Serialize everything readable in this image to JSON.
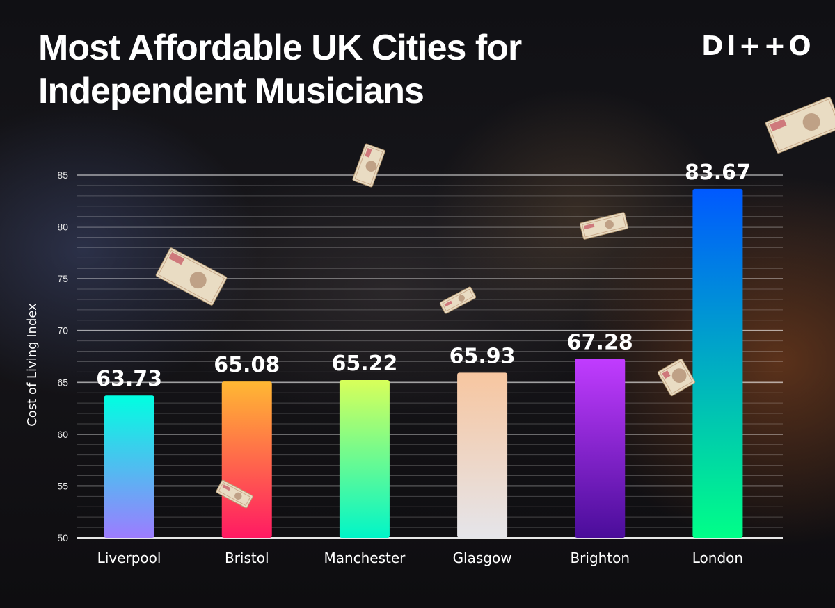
{
  "header": {
    "title": "Most Affordable UK Cities for Independent Musicians",
    "logo_text": "DI++O"
  },
  "chart_data": {
    "type": "bar",
    "title": "Most Affordable UK Cities for Independent Musicians",
    "xlabel": "",
    "ylabel": "Cost of Living Index",
    "categories": [
      "Liverpool",
      "Bristol",
      "Manchester",
      "Glasgow",
      "Brighton",
      "London"
    ],
    "values": [
      63.73,
      65.08,
      65.22,
      65.93,
      67.28,
      83.67
    ],
    "value_labels": [
      "63.73",
      "65.08",
      "65.22",
      "65.93",
      "67.28",
      "83.67"
    ],
    "ylim": [
      50,
      85
    ],
    "yticks": [
      50,
      55,
      60,
      65,
      70,
      75,
      80,
      85
    ],
    "grid": true,
    "bar_gradients": [
      [
        "#00ffe1",
        "#9d7cff"
      ],
      [
        "#ffb833",
        "#ff1a63"
      ],
      [
        "#d8ff5a",
        "#00f5c8"
      ],
      [
        "#f7c6a0",
        "#e5e5ea"
      ],
      [
        "#c13cff",
        "#4a0d9a"
      ],
      [
        "#0059ff",
        "#00ff88"
      ]
    ]
  }
}
